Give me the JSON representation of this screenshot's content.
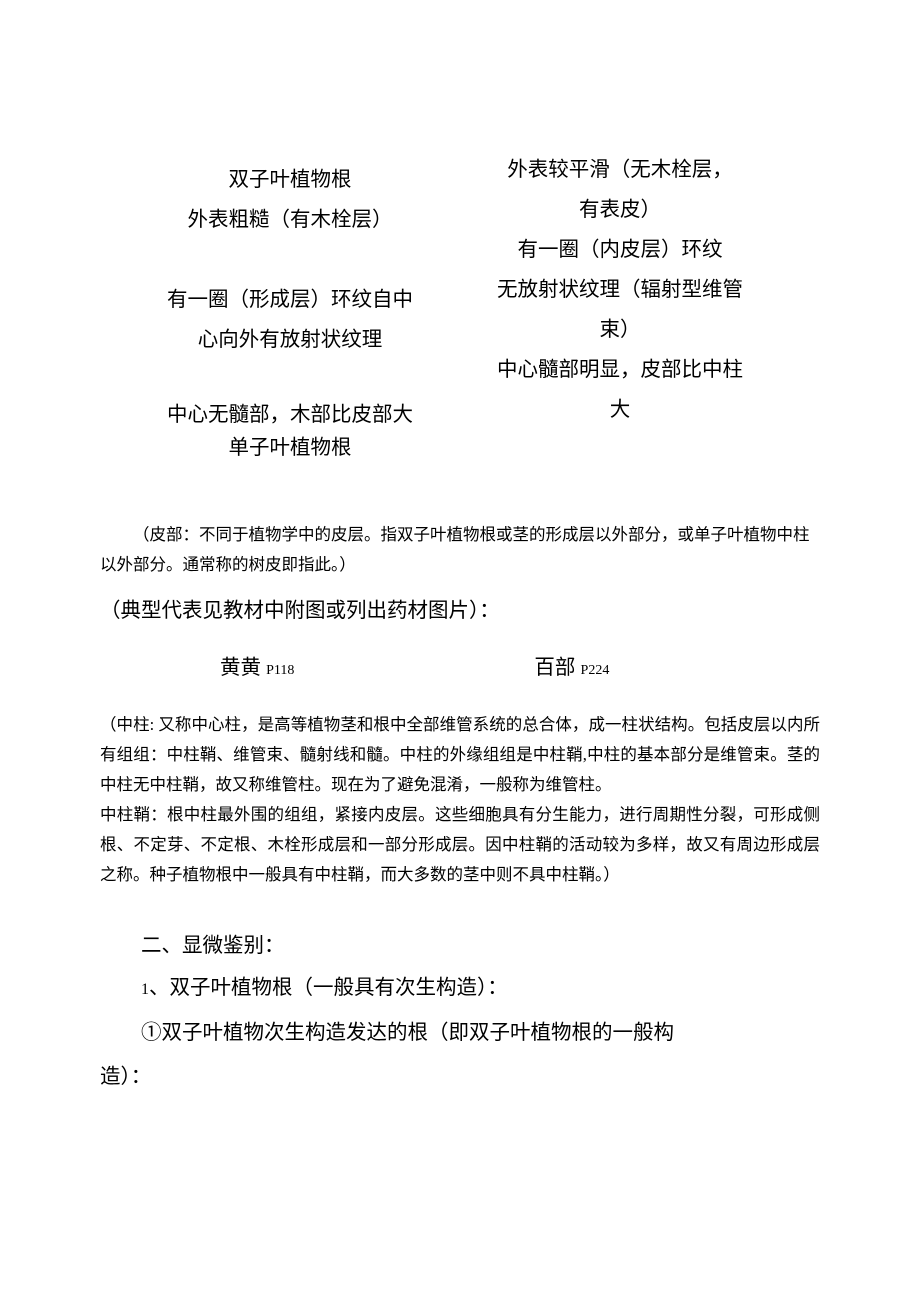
{
  "comparison": {
    "left_heading": "双子叶植物根",
    "left_row1": "外表粗糙（有木栓层）",
    "left_row2a": "有一圈（形成层）环纹自中",
    "left_row2b": "心向外有放射状纹理",
    "left_row3": "中心无髓部，木部比皮部大",
    "left_subheading": "单子叶植物根",
    "right_row1a": "外表较平滑（无木栓层，",
    "right_row1b": "有表皮）",
    "right_row2": "有一圈（内皮层）环纹",
    "right_row3a": "无放射状纹理（辐射型维管",
    "right_row3b": "束）",
    "right_row4a": "中心髓部明显，皮部比中柱",
    "right_row4b": "大"
  },
  "note1": "（皮部：不同于植物学中的皮层。指双子叶植物根或茎的形成层以外部分，或单子叶植物中柱以外部分。通常称的树皮即指此。）",
  "main1": "（典型代表见教材中附图或列出药材图片）：",
  "example_left_text": "黄黄 ",
  "example_left_sub": "P118",
  "example_right_text": "百部 ",
  "example_right_sub": "P224",
  "explanation_p1": "（中柱: 又称中心柱，是高等植物茎和根中全部维管系统的总合体，成一柱状结构。包括皮层以内所有组组：中柱鞘、维管束、髓射线和髓。中柱的外缘组组是中柱鞘,中柱的基本部分是维管束。茎的中柱无中柱鞘，故又称维管柱。现在为了避免混淆，一般称为维管柱。",
  "explanation_p2": "中柱鞘：根中柱最外围的组组，紧接内皮层。这些细胞具有分生能力，进行周期性分裂，可形成侧根、不定芽、不定根、木栓形成层和一部分形成层。因中柱鞘的活动较为多样，故又有周边形成层之称。种子植物根中一般具有中柱鞘，而大多数的茎中则不具中柱鞘。）",
  "section2_heading": "二、显微鉴别：",
  "section2_item1_num": "1",
  "section2_item1_text": "、双子叶植物根（一般具有次生构造）：",
  "section2_para1a": "①双子叶植物次生构造发达的根（即双子叶植物根的一般构",
  "section2_para1b": "造）："
}
